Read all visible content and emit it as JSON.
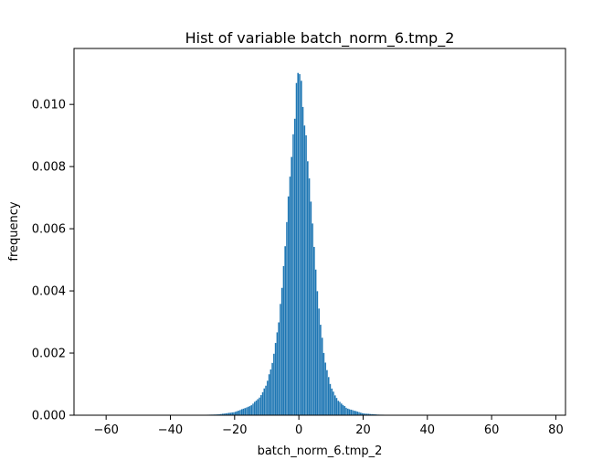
{
  "chart_data": {
    "type": "bar",
    "title": "Hist of variable batch_norm_6.tmp_2",
    "xlabel": "batch_norm_6.tmp_2",
    "ylabel": "frequency",
    "xlim": [
      -70,
      83
    ],
    "ylim": [
      0,
      0.0118
    ],
    "xticks": [
      -60,
      -40,
      -20,
      0,
      20,
      40,
      60,
      80
    ],
    "xtick_labels": [
      "−60",
      "−40",
      "−20",
      "0",
      "20",
      "40",
      "60",
      "80"
    ],
    "yticks": [
      0.0,
      0.002,
      0.004,
      0.006,
      0.008,
      0.01
    ],
    "ytick_labels": [
      "0.000",
      "0.002",
      "0.004",
      "0.006",
      "0.008",
      "0.010"
    ],
    "grid": false,
    "legend": "none",
    "bar_color": "#1f77b4",
    "bin_width": 0.5,
    "distribution": {
      "shape": "peaked, roughly symmetric (Laplace-like)",
      "center": 0,
      "peak_frequency": 0.0112,
      "x_range": [
        -30,
        30
      ]
    },
    "values": [
      {
        "x": -30,
        "y": 1e-05
      },
      {
        "x": -25,
        "y": 3e-05
      },
      {
        "x": -20,
        "y": 0.0001
      },
      {
        "x": -15,
        "y": 0.0003
      },
      {
        "x": -12,
        "y": 0.0006
      },
      {
        "x": -10,
        "y": 0.001
      },
      {
        "x": -8,
        "y": 0.0018
      },
      {
        "x": -6,
        "y": 0.0032
      },
      {
        "x": -4,
        "y": 0.0058
      },
      {
        "x": -2,
        "y": 0.0088
      },
      {
        "x": 0,
        "y": 0.011
      },
      {
        "x": 2,
        "y": 0.0092
      },
      {
        "x": 4,
        "y": 0.0065
      },
      {
        "x": 6,
        "y": 0.0036
      },
      {
        "x": 8,
        "y": 0.0018
      },
      {
        "x": 10,
        "y": 0.0009
      },
      {
        "x": 12,
        "y": 0.0005
      },
      {
        "x": 15,
        "y": 0.00022
      },
      {
        "x": 20,
        "y": 6e-05
      },
      {
        "x": 25,
        "y": 2e-05
      },
      {
        "x": 30,
        "y": 5e-06
      }
    ]
  }
}
